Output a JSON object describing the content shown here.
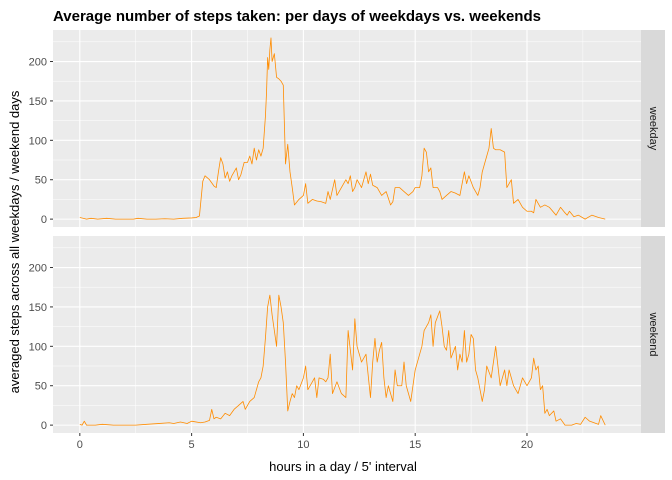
{
  "chart_data": {
    "type": "line",
    "title": "Average number of steps taken: per days of weekdays vs. weekends",
    "xlabel": "hours in a day / 5' interval",
    "ylabel": "averaged steps across all weekdays / weekend days",
    "xlim": [
      -1.2,
      25.1
    ],
    "ylim": [
      -10,
      240
    ],
    "x_ticks": [
      0,
      5,
      10,
      15,
      20
    ],
    "y_ticks": [
      0,
      50,
      100,
      150,
      200
    ],
    "grid": true,
    "legend": "none",
    "line_color": "#ff8c00",
    "panel_background": "#ebebeb",
    "strip_background": "#d9d9d9",
    "facets": [
      {
        "name": "weekday",
        "points": [
          [
            0,
            2
          ],
          [
            0.3,
            0
          ],
          [
            0.5,
            1
          ],
          [
            0.8,
            0
          ],
          [
            1.2,
            1
          ],
          [
            1.6,
            0
          ],
          [
            2,
            0
          ],
          [
            2.4,
            0
          ],
          [
            2.6,
            1
          ],
          [
            3,
            0
          ],
          [
            3.4,
            0
          ],
          [
            3.8,
            0.5
          ],
          [
            4.2,
            0
          ],
          [
            4.6,
            1
          ],
          [
            5,
            1.5
          ],
          [
            5.2,
            2
          ],
          [
            5.35,
            4
          ],
          [
            5.5,
            48
          ],
          [
            5.6,
            55
          ],
          [
            5.8,
            50
          ],
          [
            6,
            42
          ],
          [
            6.1,
            40
          ],
          [
            6.2,
            60
          ],
          [
            6.3,
            78
          ],
          [
            6.4,
            70
          ],
          [
            6.5,
            52
          ],
          [
            6.6,
            60
          ],
          [
            6.7,
            48
          ],
          [
            6.8,
            55
          ],
          [
            7,
            65
          ],
          [
            7.1,
            50
          ],
          [
            7.2,
            56
          ],
          [
            7.35,
            72
          ],
          [
            7.5,
            72
          ],
          [
            7.6,
            80
          ],
          [
            7.7,
            70
          ],
          [
            7.8,
            90
          ],
          [
            7.9,
            75
          ],
          [
            8,
            88
          ],
          [
            8.1,
            80
          ],
          [
            8.2,
            90
          ],
          [
            8.3,
            130
          ],
          [
            8.35,
            160
          ],
          [
            8.4,
            205
          ],
          [
            8.45,
            190
          ],
          [
            8.5,
            215
          ],
          [
            8.55,
            230
          ],
          [
            8.6,
            200
          ],
          [
            8.7,
            210
          ],
          [
            8.8,
            180
          ],
          [
            8.9,
            178
          ],
          [
            9,
            175
          ],
          [
            9.1,
            170
          ],
          [
            9.15,
            120
          ],
          [
            9.2,
            70
          ],
          [
            9.3,
            95
          ],
          [
            9.4,
            60
          ],
          [
            9.5,
            40
          ],
          [
            9.6,
            18
          ],
          [
            9.8,
            25
          ],
          [
            10,
            30
          ],
          [
            10.1,
            45
          ],
          [
            10.2,
            20
          ],
          [
            10.4,
            25
          ],
          [
            10.6,
            23
          ],
          [
            10.8,
            22
          ],
          [
            11,
            20
          ],
          [
            11.1,
            35
          ],
          [
            11.2,
            25
          ],
          [
            11.4,
            50
          ],
          [
            11.5,
            30
          ],
          [
            11.7,
            40
          ],
          [
            11.9,
            50
          ],
          [
            12,
            45
          ],
          [
            12.1,
            55
          ],
          [
            12.2,
            35
          ],
          [
            12.3,
            40
          ],
          [
            12.4,
            50
          ],
          [
            12.6,
            40
          ],
          [
            12.8,
            60
          ],
          [
            12.9,
            45
          ],
          [
            13,
            57
          ],
          [
            13.1,
            43
          ],
          [
            13.3,
            40
          ],
          [
            13.5,
            30
          ],
          [
            13.7,
            35
          ],
          [
            13.9,
            18
          ],
          [
            14,
            22
          ],
          [
            14.1,
            40
          ],
          [
            14.3,
            40
          ],
          [
            14.5,
            35
          ],
          [
            14.7,
            30
          ],
          [
            14.9,
            35
          ],
          [
            15,
            40
          ],
          [
            15.2,
            40
          ],
          [
            15.3,
            55
          ],
          [
            15.4,
            90
          ],
          [
            15.5,
            85
          ],
          [
            15.6,
            60
          ],
          [
            15.7,
            65
          ],
          [
            15.8,
            40
          ],
          [
            16,
            40
          ],
          [
            16.1,
            35
          ],
          [
            16.2,
            25
          ],
          [
            16.4,
            30
          ],
          [
            16.6,
            35
          ],
          [
            16.8,
            33
          ],
          [
            17,
            30
          ],
          [
            17.2,
            60
          ],
          [
            17.3,
            45
          ],
          [
            17.4,
            55
          ],
          [
            17.6,
            40
          ],
          [
            17.8,
            30
          ],
          [
            17.9,
            40
          ],
          [
            18,
            60
          ],
          [
            18.2,
            80
          ],
          [
            18.3,
            90
          ],
          [
            18.4,
            115
          ],
          [
            18.5,
            90
          ],
          [
            18.6,
            88
          ],
          [
            18.8,
            88
          ],
          [
            19,
            85
          ],
          [
            19.1,
            40
          ],
          [
            19.3,
            50
          ],
          [
            19.4,
            20
          ],
          [
            19.6,
            25
          ],
          [
            19.8,
            15
          ],
          [
            20,
            10
          ],
          [
            20.2,
            10
          ],
          [
            20.3,
            8
          ],
          [
            20.4,
            25
          ],
          [
            20.6,
            15
          ],
          [
            20.8,
            18
          ],
          [
            21,
            15
          ],
          [
            21.3,
            5
          ],
          [
            21.5,
            15
          ],
          [
            21.7,
            8
          ],
          [
            21.8,
            5
          ],
          [
            21.9,
            10
          ],
          [
            22.1,
            3
          ],
          [
            22.3,
            5
          ],
          [
            22.6,
            0
          ],
          [
            22.9,
            5
          ],
          [
            23.2,
            2
          ],
          [
            23.5,
            0
          ]
        ]
      },
      {
        "name": "weekend",
        "points": [
          [
            0,
            1
          ],
          [
            0.1,
            0
          ],
          [
            0.2,
            5
          ],
          [
            0.3,
            0
          ],
          [
            0.7,
            0
          ],
          [
            1,
            1
          ],
          [
            1.5,
            0
          ],
          [
            2,
            0
          ],
          [
            2.5,
            0
          ],
          [
            3,
            1
          ],
          [
            3.5,
            2
          ],
          [
            4,
            3
          ],
          [
            4.2,
            2
          ],
          [
            4.5,
            4
          ],
          [
            4.8,
            2
          ],
          [
            5,
            5
          ],
          [
            5.4,
            3
          ],
          [
            5.6,
            4
          ],
          [
            5.8,
            6
          ],
          [
            5.9,
            20
          ],
          [
            6,
            8
          ],
          [
            6.1,
            10
          ],
          [
            6.3,
            8
          ],
          [
            6.5,
            15
          ],
          [
            6.7,
            12
          ],
          [
            6.9,
            20
          ],
          [
            7.1,
            25
          ],
          [
            7.3,
            30
          ],
          [
            7.4,
            20
          ],
          [
            7.6,
            30
          ],
          [
            7.8,
            35
          ],
          [
            8,
            55
          ],
          [
            8.1,
            60
          ],
          [
            8.2,
            75
          ],
          [
            8.3,
            110
          ],
          [
            8.4,
            150
          ],
          [
            8.5,
            165
          ],
          [
            8.6,
            140
          ],
          [
            8.7,
            120
          ],
          [
            8.8,
            100
          ],
          [
            8.9,
            165
          ],
          [
            9,
            150
          ],
          [
            9.1,
            130
          ],
          [
            9.2,
            80
          ],
          [
            9.3,
            18
          ],
          [
            9.4,
            30
          ],
          [
            9.5,
            40
          ],
          [
            9.6,
            35
          ],
          [
            9.7,
            50
          ],
          [
            9.8,
            45
          ],
          [
            10,
            60
          ],
          [
            10.1,
            75
          ],
          [
            10.2,
            45
          ],
          [
            10.4,
            55
          ],
          [
            10.5,
            60
          ],
          [
            10.6,
            35
          ],
          [
            10.7,
            60
          ],
          [
            10.9,
            58
          ],
          [
            11,
            55
          ],
          [
            11.1,
            60
          ],
          [
            11.2,
            90
          ],
          [
            11.3,
            40
          ],
          [
            11.5,
            55
          ],
          [
            11.7,
            40
          ],
          [
            11.9,
            35
          ],
          [
            12,
            120
          ],
          [
            12.1,
            95
          ],
          [
            12.2,
            70
          ],
          [
            12.3,
            135
          ],
          [
            12.4,
            100
          ],
          [
            12.6,
            80
          ],
          [
            12.8,
            90
          ],
          [
            13,
            35
          ],
          [
            13.1,
            80
          ],
          [
            13.2,
            110
          ],
          [
            13.3,
            80
          ],
          [
            13.4,
            95
          ],
          [
            13.5,
            105
          ],
          [
            13.6,
            60
          ],
          [
            13.7,
            35
          ],
          [
            13.8,
            50
          ],
          [
            13.9,
            40
          ],
          [
            14,
            30
          ],
          [
            14.1,
            70
          ],
          [
            14.2,
            50
          ],
          [
            14.4,
            50
          ],
          [
            14.5,
            80
          ],
          [
            14.6,
            50
          ],
          [
            14.8,
            30
          ],
          [
            15,
            70
          ],
          [
            15.2,
            90
          ],
          [
            15.3,
            100
          ],
          [
            15.4,
            120
          ],
          [
            15.6,
            130
          ],
          [
            15.7,
            140
          ],
          [
            15.8,
            100
          ],
          [
            15.9,
            130
          ],
          [
            16.1,
            145
          ],
          [
            16.2,
            125
          ],
          [
            16.3,
            100
          ],
          [
            16.4,
            95
          ],
          [
            16.5,
            120
          ],
          [
            16.6,
            85
          ],
          [
            16.8,
            100
          ],
          [
            16.9,
            70
          ],
          [
            17,
            90
          ],
          [
            17.1,
            80
          ],
          [
            17.2,
            120
          ],
          [
            17.3,
            80
          ],
          [
            17.4,
            90
          ],
          [
            17.5,
            115
          ],
          [
            17.6,
            110
          ],
          [
            17.7,
            70
          ],
          [
            17.8,
            60
          ],
          [
            18,
            30
          ],
          [
            18.1,
            45
          ],
          [
            18.2,
            75
          ],
          [
            18.4,
            60
          ],
          [
            18.6,
            100
          ],
          [
            18.8,
            50
          ],
          [
            19,
            70
          ],
          [
            19.1,
            50
          ],
          [
            19.2,
            70
          ],
          [
            19.4,
            50
          ],
          [
            19.6,
            40
          ],
          [
            19.8,
            60
          ],
          [
            20,
            50
          ],
          [
            20.1,
            55
          ],
          [
            20.2,
            60
          ],
          [
            20.3,
            85
          ],
          [
            20.4,
            70
          ],
          [
            20.5,
            75
          ],
          [
            20.6,
            45
          ],
          [
            20.7,
            50
          ],
          [
            20.8,
            15
          ],
          [
            20.9,
            20
          ],
          [
            21,
            12
          ],
          [
            21.2,
            18
          ],
          [
            21.3,
            5
          ],
          [
            21.5,
            8
          ],
          [
            21.7,
            0
          ],
          [
            22,
            0
          ],
          [
            22.2,
            2
          ],
          [
            22.4,
            1
          ],
          [
            22.6,
            10
          ],
          [
            22.8,
            5
          ],
          [
            23,
            3
          ],
          [
            23.2,
            1
          ],
          [
            23.3,
            12
          ],
          [
            23.5,
            0
          ]
        ]
      }
    ]
  }
}
